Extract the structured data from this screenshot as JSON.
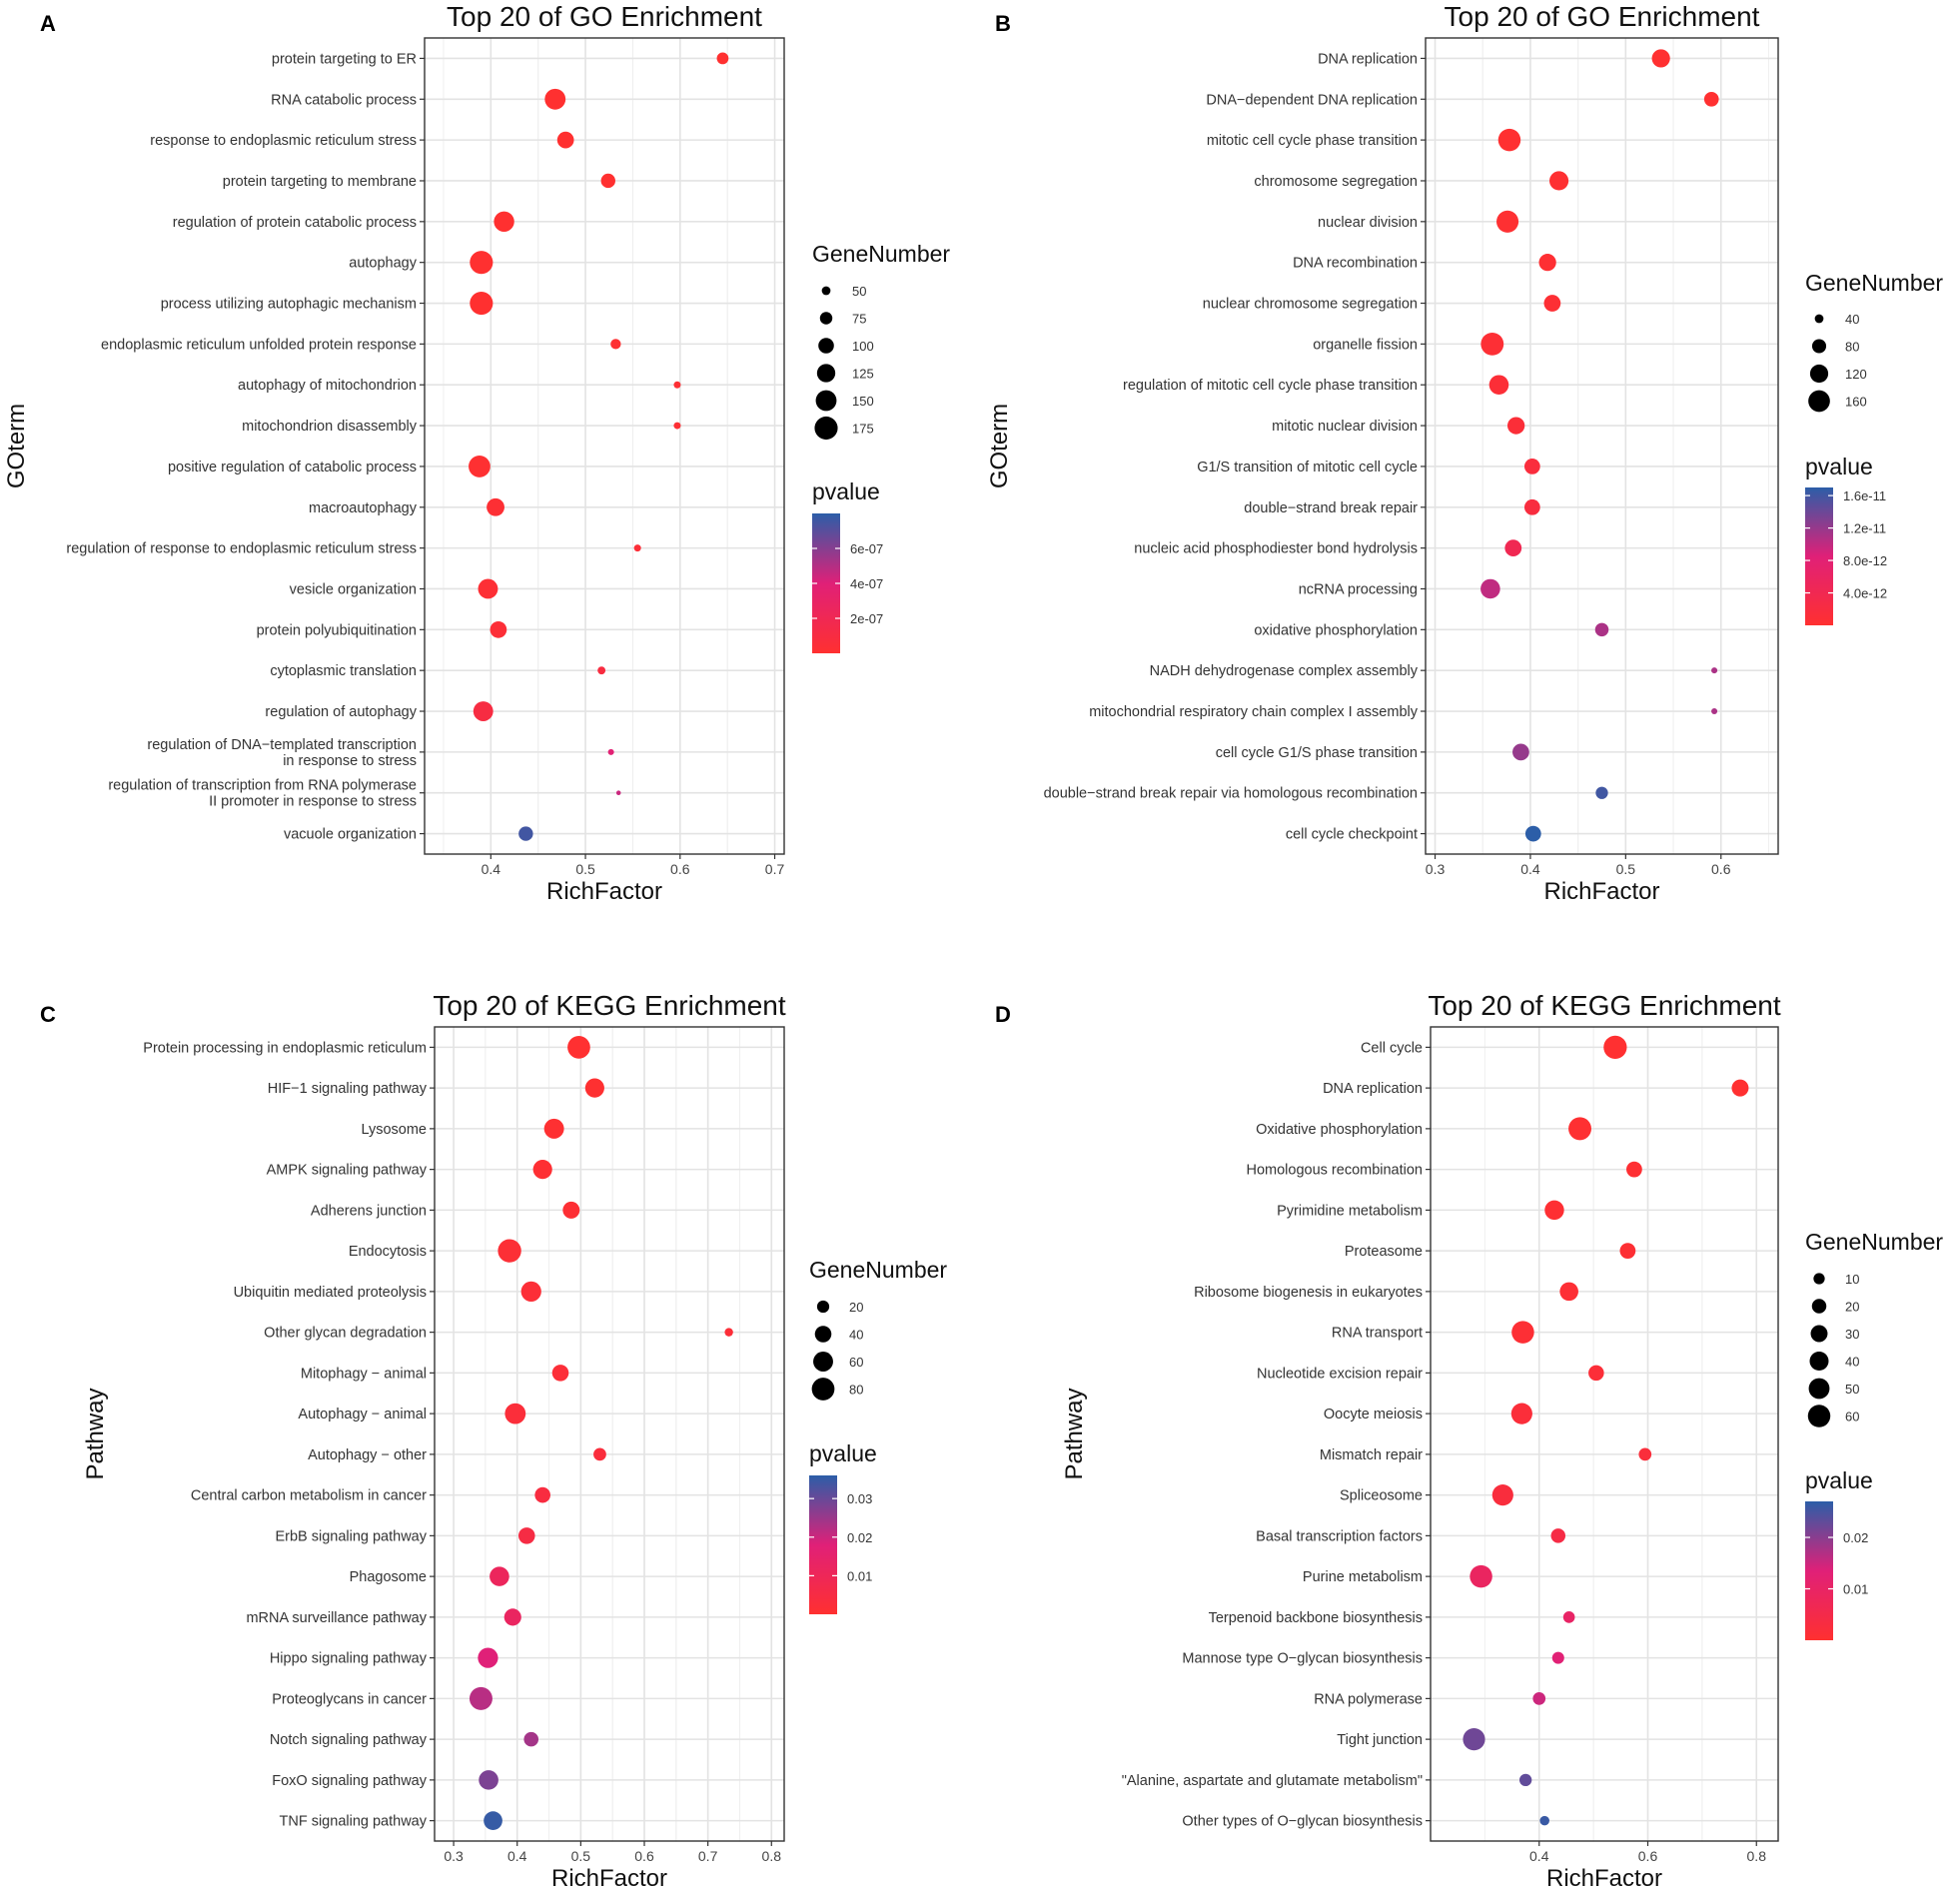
{
  "chart_data": [
    {
      "panel": "A",
      "type": "scatter",
      "title": "Top 20 of GO Enrichment",
      "xlabel": "RichFactor",
      "ylabel": "GOterm",
      "xlim": [
        0.33,
        0.71
      ],
      "xticks": [
        0.4,
        0.5,
        0.6,
        0.7
      ],
      "xtick_labels": [
        "0.4",
        "0.5",
        "0.6",
        "0.7"
      ],
      "grid": true,
      "size_legend": {
        "title": "GeneNumber",
        "values": [
          50,
          75,
          100,
          125,
          150,
          175
        ],
        "labels": [
          "50",
          "75",
          "100",
          "125",
          "150",
          "175"
        ],
        "range": [
          40,
          185
        ]
      },
      "color_legend": {
        "title": "pvalue",
        "labels": [
          "6e-07",
          "4e-07",
          "2e-07"
        ],
        "tick_values": [
          6e-07,
          4e-07,
          2e-07
        ],
        "range": [
          0,
          8e-07
        ]
      },
      "points": [
        {
          "term": "protein targeting to ER",
          "x": 0.645,
          "size": 70,
          "p": 1e-09
        },
        {
          "term": "RNA catabolic process",
          "x": 0.468,
          "size": 150,
          "p": 1e-09
        },
        {
          "term": "response to endoplasmic reticulum stress",
          "x": 0.479,
          "size": 110,
          "p": 1e-09
        },
        {
          "term": "protein targeting to membrane",
          "x": 0.524,
          "size": 90,
          "p": 1e-09
        },
        {
          "term": "regulation of protein catabolic process",
          "x": 0.414,
          "size": 145,
          "p": 1e-09
        },
        {
          "term": "autophagy",
          "x": 0.39,
          "size": 175,
          "p": 2e-09
        },
        {
          "term": "process utilizing autophagic mechanism",
          "x": 0.39,
          "size": 175,
          "p": 2e-09
        },
        {
          "term": "endoplasmic reticulum unfolded protein response",
          "x": 0.532,
          "size": 60,
          "p": 1e-08
        },
        {
          "term": "autophagy of mitochondrion",
          "x": 0.597,
          "size": 40,
          "p": 2e-08
        },
        {
          "term": "mitochondrion disassembly",
          "x": 0.597,
          "size": 40,
          "p": 2e-08
        },
        {
          "term": "positive regulation of catabolic process",
          "x": 0.388,
          "size": 160,
          "p": 1e-08
        },
        {
          "term": "macroautophagy",
          "x": 0.405,
          "size": 120,
          "p": 2e-08
        },
        {
          "term": "regulation of response to endoplasmic reticulum stress",
          "x": 0.555,
          "size": 40,
          "p": 4e-08
        },
        {
          "term": "vesicle organization",
          "x": 0.397,
          "size": 140,
          "p": 3e-08
        },
        {
          "term": "protein polyubiquitination",
          "x": 0.408,
          "size": 110,
          "p": 4e-08
        },
        {
          "term": "cytoplasmic translation",
          "x": 0.517,
          "size": 45,
          "p": 9e-08
        },
        {
          "term": "regulation of autophagy",
          "x": 0.392,
          "size": 140,
          "p": 1e-07
        },
        {
          "term": "regulation of DNA−templated transcription\nin response to stress",
          "x": 0.527,
          "size": 35,
          "p": 3.8e-07
        },
        {
          "term": "regulation of transcription from RNA polymerase\nII promoter in response to stress",
          "x": 0.535,
          "size": 28,
          "p": 4.5e-07
        },
        {
          "term": "vacuole organization",
          "x": 0.437,
          "size": 90,
          "p": 7.5e-07
        }
      ]
    },
    {
      "panel": "B",
      "type": "scatter",
      "title": "Top 20 of GO Enrichment",
      "xlabel": "RichFactor",
      "ylabel": "GOterm",
      "xlim": [
        0.29,
        0.66
      ],
      "xticks": [
        0.3,
        0.4,
        0.5,
        0.6
      ],
      "xtick_labels": [
        "0.3",
        "0.4",
        "0.5",
        "0.6"
      ],
      "grid": true,
      "size_legend": {
        "title": "GeneNumber",
        "values": [
          40,
          80,
          120,
          160
        ],
        "labels": [
          "40",
          "80",
          "120",
          "160"
        ],
        "range": [
          30,
          190
        ]
      },
      "color_legend": {
        "title": "pvalue",
        "labels": [
          "1.6e-11",
          "1.2e-11",
          "8.0e-12",
          "4.0e-12"
        ],
        "tick_values": [
          1.6e-11,
          1.2e-11,
          8e-12,
          4e-12
        ],
        "range": [
          0,
          1.7e-11
        ]
      },
      "points": [
        {
          "term": "DNA replication",
          "x": 0.537,
          "size": 120,
          "p": 1e-13
        },
        {
          "term": "DNA−dependent DNA replication",
          "x": 0.59,
          "size": 85,
          "p": 1e-13
        },
        {
          "term": "mitotic cell cycle phase transition",
          "x": 0.378,
          "size": 170,
          "p": 1e-13
        },
        {
          "term": "chromosome segregation",
          "x": 0.43,
          "size": 130,
          "p": 2e-13
        },
        {
          "term": "nuclear division",
          "x": 0.376,
          "size": 165,
          "p": 2e-13
        },
        {
          "term": "DNA recombination",
          "x": 0.418,
          "size": 110,
          "p": 4e-13
        },
        {
          "term": "nuclear chromosome segregation",
          "x": 0.423,
          "size": 105,
          "p": 5e-13
        },
        {
          "term": "organelle fission",
          "x": 0.36,
          "size": 175,
          "p": 6e-13
        },
        {
          "term": "regulation of mitotic cell cycle phase transition",
          "x": 0.367,
          "size": 135,
          "p": 8e-13
        },
        {
          "term": "mitotic nuclear division",
          "x": 0.385,
          "size": 110,
          "p": 1e-12
        },
        {
          "term": "G1/S transition of mitotic cell cycle",
          "x": 0.402,
          "size": 95,
          "p": 1.5e-12
        },
        {
          "term": "double−strand break repair",
          "x": 0.402,
          "size": 95,
          "p": 1.8e-12
        },
        {
          "term": "nucleic acid phosphodiester bond hydrolysis",
          "x": 0.382,
          "size": 105,
          "p": 4e-12
        },
        {
          "term": "ncRNA processing",
          "x": 0.358,
          "size": 135,
          "p": 1e-11
        },
        {
          "term": "oxidative phosphorylation",
          "x": 0.475,
          "size": 75,
          "p": 1.1e-11
        },
        {
          "term": "NADH dehydrogenase complex assembly",
          "x": 0.593,
          "size": 25,
          "p": 1.1e-11
        },
        {
          "term": "mitochondrial respiratory chain complex I assembly",
          "x": 0.593,
          "size": 25,
          "p": 1.1e-11
        },
        {
          "term": "cell cycle G1/S phase transition",
          "x": 0.39,
          "size": 105,
          "p": 1.2e-11
        },
        {
          "term": "double−strand break repair via homologous recombination",
          "x": 0.475,
          "size": 65,
          "p": 1.6e-11
        },
        {
          "term": "cell cycle checkpoint",
          "x": 0.403,
          "size": 95,
          "p": 1.7e-11
        }
      ]
    },
    {
      "panel": "C",
      "type": "scatter",
      "title": "Top 20 of KEGG Enrichment",
      "xlabel": "RichFactor",
      "ylabel": "Pathway",
      "xlim": [
        0.27,
        0.82
      ],
      "xticks": [
        0.3,
        0.4,
        0.5,
        0.6,
        0.7,
        0.8
      ],
      "xtick_labels": [
        "0.3",
        "0.4",
        "0.5",
        "0.6",
        "0.7",
        "0.8"
      ],
      "grid": true,
      "size_legend": {
        "title": "GeneNumber",
        "values": [
          20,
          40,
          60,
          80
        ],
        "labels": [
          "20",
          "40",
          "60",
          "80"
        ],
        "range": [
          5,
          90
        ]
      },
      "color_legend": {
        "title": "pvalue",
        "labels": [
          "0.03",
          "0.02",
          "0.01"
        ],
        "tick_values": [
          0.03,
          0.02,
          0.01
        ],
        "range": [
          0,
          0.036
        ]
      },
      "points": [
        {
          "term": "Protein processing in endoplasmic reticulum",
          "x": 0.497,
          "size": 80,
          "p": 0.0002
        },
        {
          "term": "HIF−1 signaling pathway",
          "x": 0.522,
          "size": 55,
          "p": 0.0003
        },
        {
          "term": "Lysosome",
          "x": 0.458,
          "size": 60,
          "p": 0.0005
        },
        {
          "term": "AMPK signaling pathway",
          "x": 0.44,
          "size": 55,
          "p": 0.0008
        },
        {
          "term": "Adherens junction",
          "x": 0.485,
          "size": 42,
          "p": 0.001
        },
        {
          "term": "Endocytosis",
          "x": 0.388,
          "size": 85,
          "p": 0.0015
        },
        {
          "term": "Ubiquitin mediated proteolysis",
          "x": 0.422,
          "size": 62,
          "p": 0.0018
        },
        {
          "term": "Other glycan degradation",
          "x": 0.733,
          "size": 8,
          "p": 0.002
        },
        {
          "term": "Mitophagy − animal",
          "x": 0.468,
          "size": 40,
          "p": 0.002
        },
        {
          "term": "Autophagy − animal",
          "x": 0.397,
          "size": 66,
          "p": 0.0025
        },
        {
          "term": "Autophagy − other",
          "x": 0.53,
          "size": 22,
          "p": 0.003
        },
        {
          "term": "Central carbon metabolism in cancer",
          "x": 0.44,
          "size": 35,
          "p": 0.004
        },
        {
          "term": "ErbB signaling pathway",
          "x": 0.415,
          "size": 40,
          "p": 0.005
        },
        {
          "term": "Phagosome",
          "x": 0.372,
          "size": 58,
          "p": 0.011
        },
        {
          "term": "mRNA surveillance pathway",
          "x": 0.393,
          "size": 43,
          "p": 0.012
        },
        {
          "term": "Hippo signaling pathway",
          "x": 0.354,
          "size": 62,
          "p": 0.018
        },
        {
          "term": "Proteoglycans in cancer",
          "x": 0.343,
          "size": 82,
          "p": 0.022
        },
        {
          "term": "Notch signaling pathway",
          "x": 0.422,
          "size": 30,
          "p": 0.024
        },
        {
          "term": "FoxO signaling pathway",
          "x": 0.355,
          "size": 58,
          "p": 0.028
        },
        {
          "term": "TNF signaling pathway",
          "x": 0.362,
          "size": 52,
          "p": 0.035
        }
      ]
    },
    {
      "panel": "D",
      "type": "scatter",
      "title": "Top 20 of KEGG Enrichment",
      "xlabel": "RichFactor",
      "ylabel": "Pathway",
      "xlim": [
        0.2,
        0.84
      ],
      "xticks": [
        0.4,
        0.6,
        0.8
      ],
      "xtick_labels": [
        "0.4",
        "0.6",
        "0.8"
      ],
      "grid": true,
      "size_legend": {
        "title": "GeneNumber",
        "values": [
          10,
          20,
          30,
          40,
          50,
          60
        ],
        "labels": [
          "10",
          "20",
          "30",
          "40",
          "50",
          "60"
        ],
        "range": [
          2,
          70
        ]
      },
      "color_legend": {
        "title": "pvalue",
        "labels": [
          "0.02",
          "0.01"
        ],
        "tick_values": [
          0.02,
          0.01
        ],
        "range": [
          0,
          0.027
        ]
      },
      "points": [
        {
          "term": "Cell cycle",
          "x": 0.54,
          "size": 65,
          "p": 0.0001
        },
        {
          "term": "DNA replication",
          "x": 0.77,
          "size": 30,
          "p": 0.0002
        },
        {
          "term": "Oxidative phosphorylation",
          "x": 0.475,
          "size": 63,
          "p": 0.0003
        },
        {
          "term": "Homologous recombination",
          "x": 0.575,
          "size": 25,
          "p": 0.0005
        },
        {
          "term": "Pyrimidine metabolism",
          "x": 0.428,
          "size": 42,
          "p": 0.0006
        },
        {
          "term": "Proteasome",
          "x": 0.563,
          "size": 25,
          "p": 0.0008
        },
        {
          "term": "Ribosome biogenesis in eukaryotes",
          "x": 0.455,
          "size": 38,
          "p": 0.001
        },
        {
          "term": "RNA transport",
          "x": 0.37,
          "size": 60,
          "p": 0.001
        },
        {
          "term": "Nucleotide excision repair",
          "x": 0.505,
          "size": 24,
          "p": 0.0015
        },
        {
          "term": "Oocyte meiosis",
          "x": 0.368,
          "size": 52,
          "p": 0.0018
        },
        {
          "term": "Mismatch repair",
          "x": 0.595,
          "size": 14,
          "p": 0.002
        },
        {
          "term": "Spliceosome",
          "x": 0.333,
          "size": 52,
          "p": 0.0025
        },
        {
          "term": "Basal transcription factors",
          "x": 0.435,
          "size": 20,
          "p": 0.004
        },
        {
          "term": "Purine metabolism",
          "x": 0.293,
          "size": 60,
          "p": 0.009
        },
        {
          "term": "Terpenoid backbone biosynthesis",
          "x": 0.455,
          "size": 11,
          "p": 0.01
        },
        {
          "term": "Mannose type O−glycan biosynthesis",
          "x": 0.435,
          "size": 12,
          "p": 0.013
        },
        {
          "term": "RNA polymerase",
          "x": 0.4,
          "size": 14,
          "p": 0.015
        },
        {
          "term": "Tight junction",
          "x": 0.28,
          "size": 58,
          "p": 0.022
        },
        {
          "term": "\"Alanine, aspartate and glutamate metabolism\"",
          "x": 0.375,
          "size": 13,
          "p": 0.023
        },
        {
          "term": "Other types of O−glycan biosynthesis",
          "x": 0.41,
          "size": 6,
          "p": 0.026
        }
      ]
    }
  ]
}
